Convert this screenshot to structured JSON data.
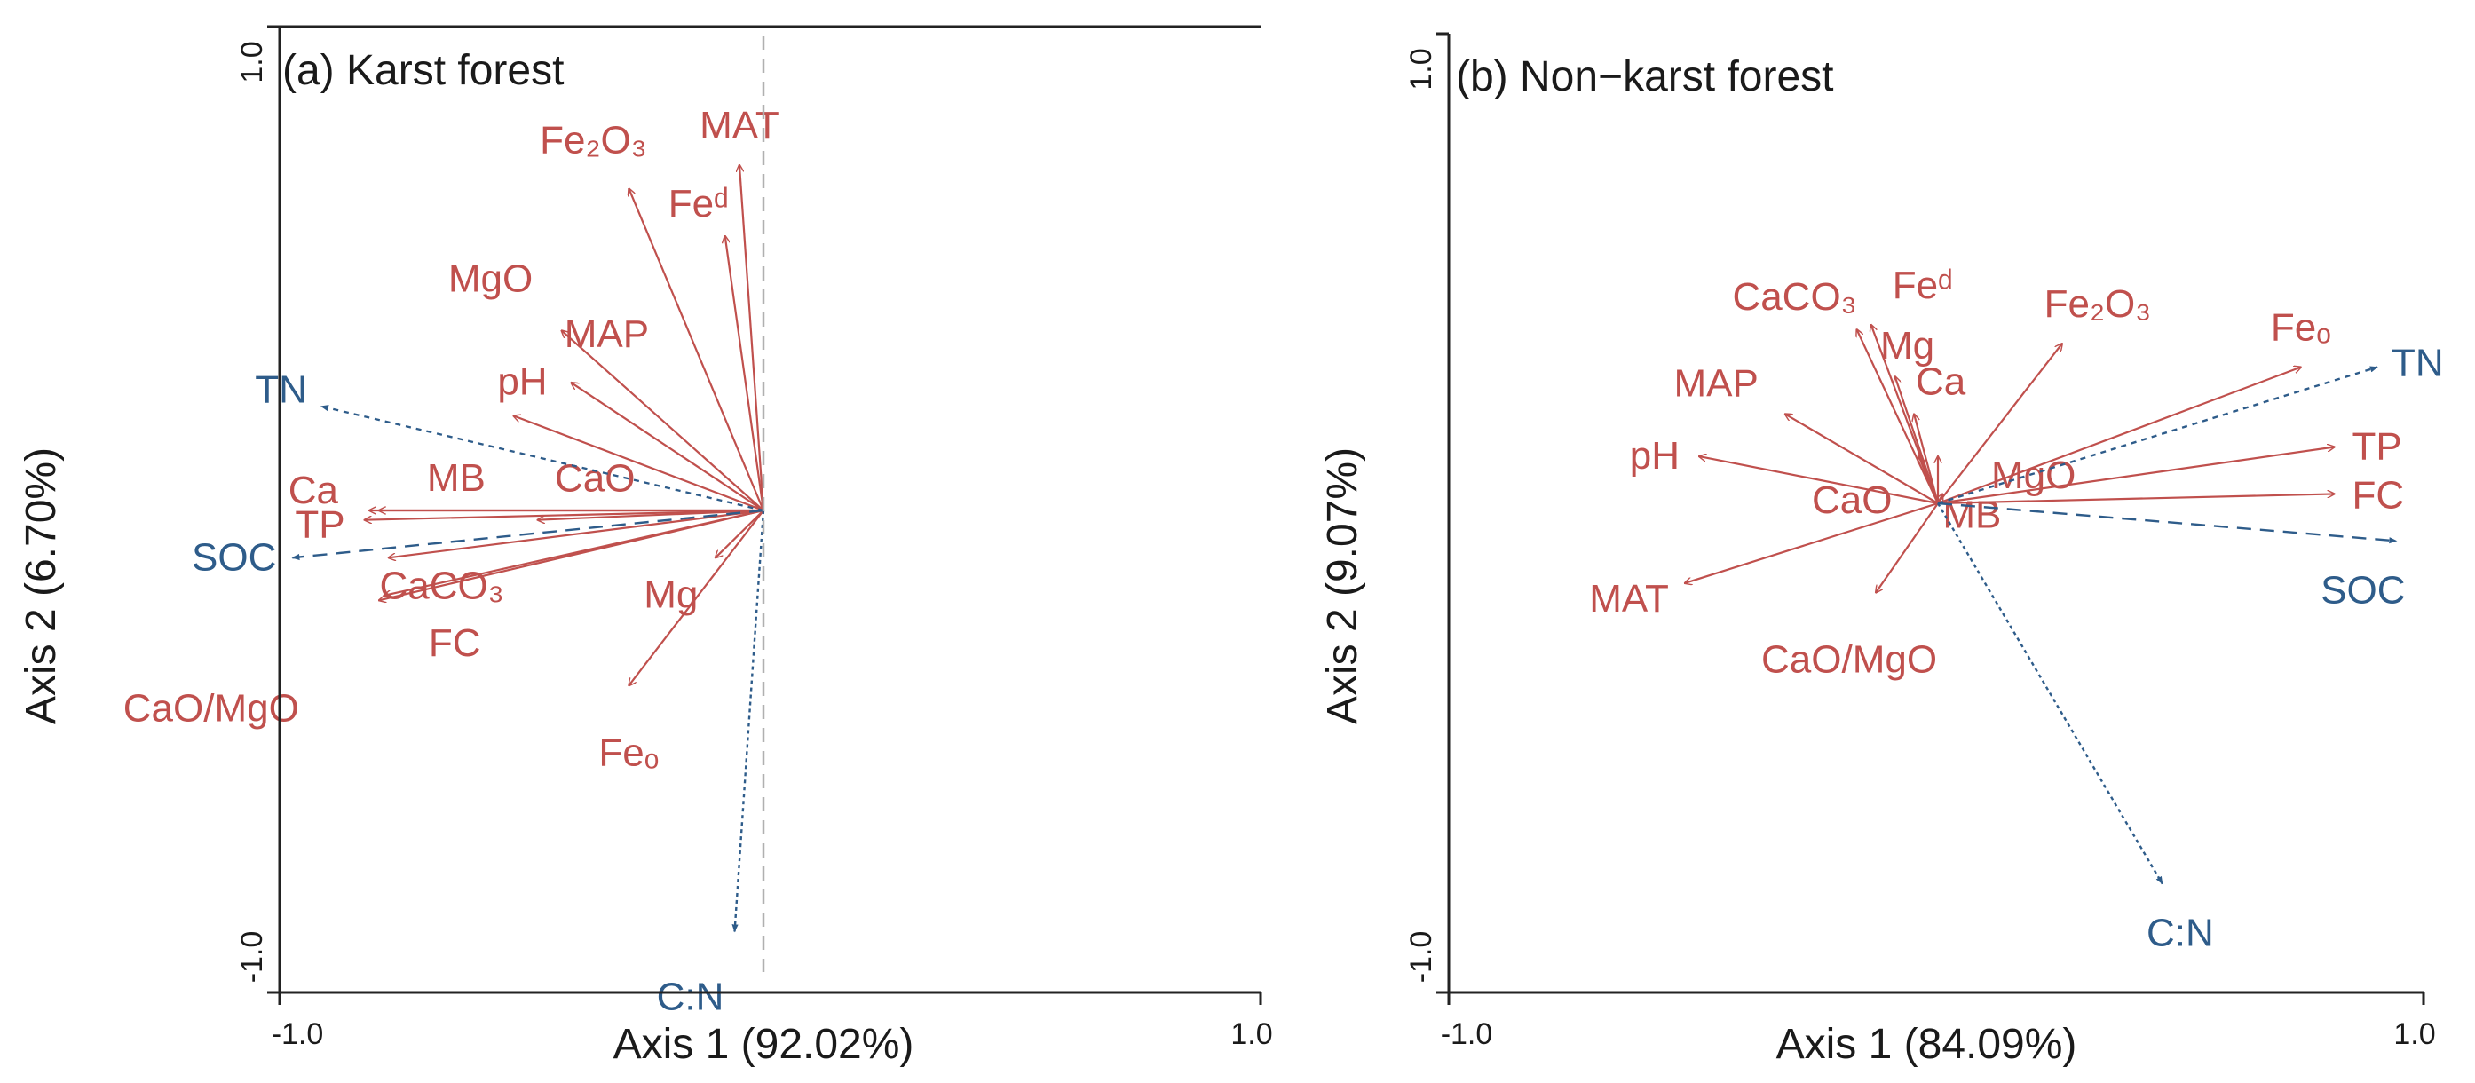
{
  "figure": {
    "colors": {
      "environment": "#c0504d",
      "response": "#2e5c8a",
      "frame": "#222222",
      "zero_line": "#b0b0b0"
    },
    "panels": [
      {
        "title": "(a) Karst forest",
        "xlabel": "Axis 1 (92.02%)",
        "ylabel": "Axis 2 (6.70%)"
      },
      {
        "title": "(b) Non−karst forest",
        "xlabel": "Axis 1 (84.09%)",
        "ylabel": "Axis 2 (9.07%)"
      }
    ]
  },
  "chart_data": [
    {
      "type": "biplot",
      "title": "(a) Karst forest",
      "xlabel": "Axis 1 (92.02%)",
      "ylabel": "Axis 2 (6.70%)",
      "xlim": [
        -1.0,
        1.0
      ],
      "ylim": [
        -1.0,
        1.0
      ],
      "xticks": [
        "-1.0",
        "1.0"
      ],
      "yticks": [
        "1.0",
        "-1.0"
      ],
      "environmental_vectors": [
        {
          "name": "Fe₂O₃",
          "x": -0.28,
          "y": 0.68
        },
        {
          "name": "MAT",
          "x": -0.05,
          "y": 0.73
        },
        {
          "name": "Feᵈ",
          "x": -0.08,
          "y": 0.58
        },
        {
          "name": "MgO",
          "x": -0.42,
          "y": 0.38
        },
        {
          "name": "MAP",
          "x": -0.4,
          "y": 0.27
        },
        {
          "name": "pH",
          "x": -0.52,
          "y": 0.2
        },
        {
          "name": "Ca",
          "x": -0.82,
          "y": 0.0
        },
        {
          "name": "MB",
          "x": -0.8,
          "y": 0.0
        },
        {
          "name": "CaO",
          "x": -0.47,
          "y": -0.02
        },
        {
          "name": "TP",
          "x": -0.83,
          "y": -0.02
        },
        {
          "name": "CaCO₃",
          "x": -0.78,
          "y": -0.1
        },
        {
          "name": "FC",
          "x": -0.79,
          "y": -0.18
        },
        {
          "name": "CaO/MgO",
          "x": -0.8,
          "y": -0.19
        },
        {
          "name": "Mg",
          "x": -0.1,
          "y": -0.1
        },
        {
          "name": "Feₒ",
          "x": -0.28,
          "y": -0.37
        }
      ],
      "response_vectors": [
        {
          "name": "TN",
          "x": -0.92,
          "y": 0.22
        },
        {
          "name": "SOC",
          "x": -0.98,
          "y": -0.1
        },
        {
          "name": "C:N",
          "x": -0.06,
          "y": -0.89
        }
      ]
    },
    {
      "type": "biplot",
      "title": "(b) Non−karst forest",
      "xlabel": "Axis 1 (84.09%)",
      "ylabel": "Axis 2 (9.07%)",
      "xlim": [
        -1.0,
        1.0
      ],
      "ylim": [
        -1.0,
        1.0
      ],
      "xticks": [
        "-1.0",
        "1.0"
      ],
      "yticks": [
        "1.0",
        "-1.0"
      ],
      "environmental_vectors": [
        {
          "name": "CaCO₃",
          "x": -0.17,
          "y": 0.37
        },
        {
          "name": "Feᵈ",
          "x": -0.14,
          "y": 0.38
        },
        {
          "name": "Mg",
          "x": -0.09,
          "y": 0.27
        },
        {
          "name": "Fe₂O₃",
          "x": 0.26,
          "y": 0.34
        },
        {
          "name": "Feₒ",
          "x": 0.76,
          "y": 0.29
        },
        {
          "name": "Ca",
          "x": -0.05,
          "y": 0.19
        },
        {
          "name": "MAP",
          "x": -0.32,
          "y": 0.19
        },
        {
          "name": "CaO",
          "x": -0.04,
          "y": 0.1
        },
        {
          "name": "MgO",
          "x": 0.0,
          "y": 0.1
        },
        {
          "name": "MB",
          "x": 0.01,
          "y": 0.02
        },
        {
          "name": "pH",
          "x": -0.5,
          "y": 0.1
        },
        {
          "name": "TP",
          "x": 0.83,
          "y": 0.12
        },
        {
          "name": "FC",
          "x": 0.83,
          "y": 0.02
        },
        {
          "name": "MAT",
          "x": -0.53,
          "y": -0.17
        },
        {
          "name": "CaO/MgO",
          "x": -0.13,
          "y": -0.19
        }
      ],
      "response_vectors": [
        {
          "name": "TN",
          "x": 0.92,
          "y": 0.29
        },
        {
          "name": "SOC",
          "x": 0.96,
          "y": -0.08
        },
        {
          "name": "C:N",
          "x": 0.47,
          "y": -0.81
        }
      ]
    }
  ]
}
